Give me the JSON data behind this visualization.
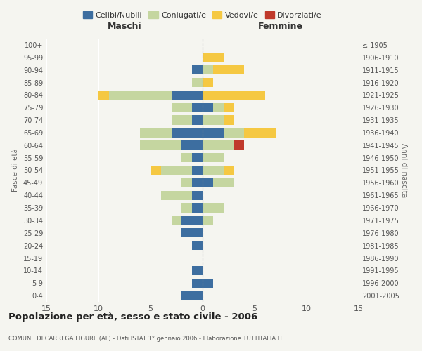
{
  "age_groups": [
    "0-4",
    "5-9",
    "10-14",
    "15-19",
    "20-24",
    "25-29",
    "30-34",
    "35-39",
    "40-44",
    "45-49",
    "50-54",
    "55-59",
    "60-64",
    "65-69",
    "70-74",
    "75-79",
    "80-84",
    "85-89",
    "90-94",
    "95-99",
    "100+"
  ],
  "birth_years": [
    "2001-2005",
    "1996-2000",
    "1991-1995",
    "1986-1990",
    "1981-1985",
    "1976-1980",
    "1971-1975",
    "1966-1970",
    "1961-1965",
    "1956-1960",
    "1951-1955",
    "1946-1950",
    "1941-1945",
    "1936-1940",
    "1931-1935",
    "1926-1930",
    "1921-1925",
    "1916-1920",
    "1911-1915",
    "1906-1910",
    "≤ 1905"
  ],
  "maschi": {
    "celibi": [
      2,
      1,
      1,
      0,
      1,
      2,
      2,
      1,
      1,
      1,
      1,
      1,
      2,
      3,
      1,
      1,
      3,
      0,
      1,
      0,
      0
    ],
    "coniugati": [
      0,
      0,
      0,
      0,
      0,
      0,
      1,
      1,
      3,
      1,
      3,
      1,
      4,
      3,
      2,
      2,
      6,
      1,
      0,
      0,
      0
    ],
    "vedovi": [
      0,
      0,
      0,
      0,
      0,
      0,
      0,
      0,
      0,
      0,
      1,
      0,
      0,
      0,
      0,
      0,
      1,
      0,
      0,
      0,
      0
    ],
    "divorziati": [
      0,
      0,
      0,
      0,
      0,
      0,
      0,
      0,
      0,
      0,
      0,
      0,
      0,
      0,
      0,
      0,
      0,
      0,
      0,
      0,
      0
    ]
  },
  "femmine": {
    "nubili": [
      0,
      1,
      0,
      0,
      0,
      0,
      0,
      0,
      0,
      1,
      0,
      0,
      0,
      2,
      0,
      1,
      0,
      0,
      0,
      0,
      0
    ],
    "coniugate": [
      0,
      0,
      0,
      0,
      0,
      0,
      1,
      2,
      0,
      2,
      2,
      2,
      3,
      2,
      2,
      1,
      0,
      0,
      1,
      0,
      0
    ],
    "vedove": [
      0,
      0,
      0,
      0,
      0,
      0,
      0,
      0,
      0,
      0,
      1,
      0,
      0,
      3,
      1,
      1,
      6,
      1,
      3,
      2,
      0
    ],
    "divorziate": [
      0,
      0,
      0,
      0,
      0,
      0,
      0,
      0,
      0,
      0,
      0,
      0,
      1,
      0,
      0,
      0,
      0,
      0,
      0,
      0,
      0
    ]
  },
  "colors": {
    "celibi_nubili": "#3d6ea0",
    "coniugati": "#c5d6a0",
    "vedovi": "#f5c842",
    "divorziati": "#c0392b"
  },
  "xlim": 15,
  "title": "Popolazione per età, sesso e stato civile - 2006",
  "subtitle": "COMUNE DI CARREGA LIGURE (AL) - Dati ISTAT 1° gennaio 2006 - Elaborazione TUTTITALIA.IT",
  "ylabel_left": "Fasce di età",
  "ylabel_right": "Anni di nascita",
  "xlabel_maschi": "Maschi",
  "xlabel_femmine": "Femmine",
  "bg_color": "#f5f5f0"
}
